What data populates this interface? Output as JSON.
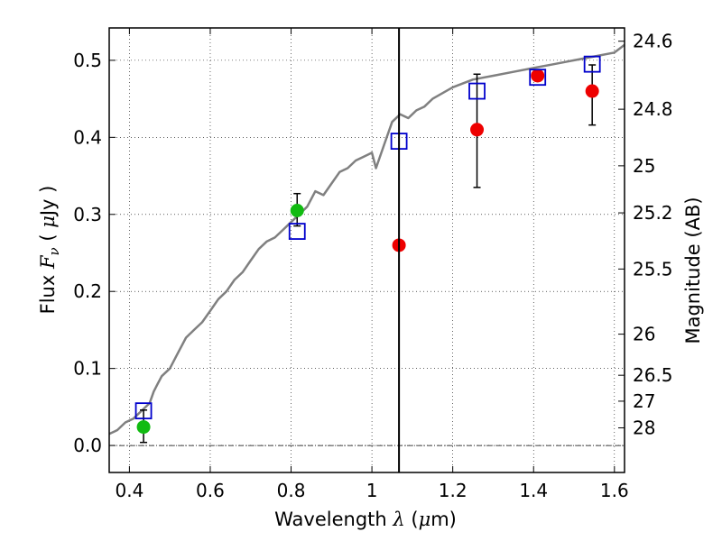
{
  "chart_data": {
    "type": "scatter",
    "xlabel": {
      "prefix": "Wavelength  ",
      "symbol": "λ",
      "unit_open": " (",
      "unit_mu": "μ",
      "unit_close": "m)"
    },
    "ylabel": {
      "prefix": "Flux  ",
      "symbol": "F",
      "subscript": "ν",
      "unit_open": "  ( ",
      "unit_mu": "μ",
      "unit_close": "Jy )"
    },
    "y2label": "Magnitude (AB)",
    "xlim": [
      0.35,
      1.625
    ],
    "ylim": [
      -0.035,
      0.542
    ],
    "x_ticks": [
      0.4,
      0.6,
      0.8,
      1.0,
      1.2,
      1.4,
      1.6
    ],
    "x_tick_labels": [
      "0.4",
      "0.6",
      "0.8",
      "1",
      "1.2",
      "1.4",
      "1.6"
    ],
    "y_ticks": [
      0.0,
      0.1,
      0.2,
      0.3,
      0.4,
      0.5
    ],
    "y_tick_labels": [
      "0.0",
      "0.1",
      "0.2",
      "0.3",
      "0.4",
      "0.5"
    ],
    "mag_ticks": [
      24.6,
      24.8,
      25,
      25.2,
      25.5,
      26,
      26.5,
      27,
      28
    ],
    "mag_tick_labels": [
      "24.6",
      "24.8",
      "25",
      "25.2",
      "25.5",
      "26",
      "26.5",
      "27",
      "28"
    ],
    "grid": true,
    "vertical_line_x": 1.067,
    "zero_line_y": 0.0,
    "colors": {
      "model": "#808080",
      "model_points": "#0000cc",
      "red_points": "#ee0000",
      "green_points": "#11bb11",
      "errorbar": "#000000",
      "vline": "#000000"
    },
    "model_spectrum": {
      "x": [
        0.35,
        0.37,
        0.39,
        0.41,
        0.43,
        0.45,
        0.46,
        0.47,
        0.48,
        0.5,
        0.52,
        0.54,
        0.56,
        0.58,
        0.6,
        0.62,
        0.64,
        0.66,
        0.68,
        0.7,
        0.72,
        0.74,
        0.76,
        0.78,
        0.8,
        0.82,
        0.84,
        0.86,
        0.88,
        0.9,
        0.92,
        0.94,
        0.96,
        0.98,
        1.0,
        1.01,
        1.03,
        1.05,
        1.07,
        1.09,
        1.11,
        1.13,
        1.15,
        1.2,
        1.25,
        1.3,
        1.35,
        1.4,
        1.45,
        1.5,
        1.55,
        1.6,
        1.625
      ],
      "y": [
        0.015,
        0.02,
        0.03,
        0.035,
        0.045,
        0.055,
        0.07,
        0.08,
        0.09,
        0.1,
        0.12,
        0.14,
        0.15,
        0.16,
        0.175,
        0.19,
        0.2,
        0.215,
        0.225,
        0.24,
        0.255,
        0.265,
        0.27,
        0.28,
        0.29,
        0.3,
        0.31,
        0.33,
        0.325,
        0.34,
        0.355,
        0.36,
        0.37,
        0.375,
        0.38,
        0.36,
        0.39,
        0.42,
        0.43,
        0.425,
        0.435,
        0.44,
        0.45,
        0.465,
        0.475,
        0.48,
        0.485,
        0.49,
        0.495,
        0.5,
        0.505,
        0.51,
        0.52
      ]
    },
    "model_photometry": [
      {
        "x": 0.435,
        "y": 0.045
      },
      {
        "x": 0.815,
        "y": 0.278
      },
      {
        "x": 1.067,
        "y": 0.395
      },
      {
        "x": 1.26,
        "y": 0.46
      },
      {
        "x": 1.41,
        "y": 0.478
      },
      {
        "x": 1.545,
        "y": 0.495
      }
    ],
    "observed_red": [
      {
        "x": 1.067,
        "y": 0.26,
        "yerr": null
      },
      {
        "x": 1.26,
        "y": 0.41,
        "yerr": [
          0.075,
          0.072
        ]
      },
      {
        "x": 1.41,
        "y": 0.48,
        "yerr": null
      },
      {
        "x": 1.545,
        "y": 0.46,
        "yerr": [
          0.044,
          0.034
        ]
      }
    ],
    "observed_green": [
      {
        "x": 0.435,
        "y": 0.024,
        "yerr": [
          0.02,
          0.022
        ]
      },
      {
        "x": 0.815,
        "y": 0.305,
        "yerr": [
          0.02,
          0.022
        ]
      }
    ]
  }
}
